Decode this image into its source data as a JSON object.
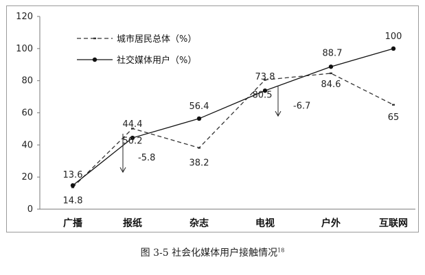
{
  "chart_data": {
    "type": "line",
    "categories": [
      "广播",
      "报纸",
      "杂志",
      "电视",
      "户外",
      "互联网"
    ],
    "series": [
      {
        "name": "城市居民总体（%）",
        "values": [
          13.6,
          50.2,
          38.2,
          80.5,
          84.6,
          65
        ],
        "labels": [
          "13.6",
          "50.2",
          "38.2",
          "80.5",
          "84.6",
          "65"
        ],
        "style": "dashed",
        "color": "#333333"
      },
      {
        "name": "社交媒体用户（%）",
        "values": [
          14.8,
          44.4,
          56.4,
          73.8,
          88.7,
          100
        ],
        "labels": [
          "14.8",
          "44.4",
          "56.4",
          "73.8",
          "88.7",
          "100"
        ],
        "style": "solid",
        "color": "#111111"
      }
    ],
    "yticks": [
      0,
      20,
      40,
      60,
      80,
      100,
      120
    ],
    "ylim": [
      0,
      120
    ],
    "grid": false,
    "legend_position": "top-left",
    "annotations": [
      {
        "text": "-5.8",
        "category_index": 1,
        "from": 44.4,
        "to": 23
      },
      {
        "text": "-6.7",
        "category_index": 3,
        "from": 73.8,
        "to": 58
      }
    ]
  },
  "caption": {
    "text": "图 3-5 社会化媒体用户接触情况",
    "sup": "18"
  }
}
